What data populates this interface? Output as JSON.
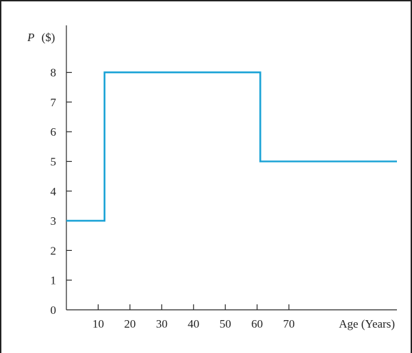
{
  "chart_data": {
    "type": "line",
    "step": true,
    "ylabel_var": "P",
    "ylabel_unit": "($)",
    "xlabel": "Age (Years)",
    "x_ticks": [
      10,
      20,
      30,
      40,
      50,
      60,
      70
    ],
    "y_ticks": [
      0,
      1,
      2,
      3,
      4,
      5,
      6,
      7,
      8
    ],
    "xlim": [
      0,
      104
    ],
    "ylim": [
      0,
      9
    ],
    "series": [
      {
        "color": "#1BA3D6",
        "points": [
          {
            "x": 0,
            "y": 3
          },
          {
            "x": 12,
            "y": 3
          },
          {
            "x": 12,
            "y": 8
          },
          {
            "x": 61,
            "y": 8
          },
          {
            "x": 61,
            "y": 5
          },
          {
            "x": 104,
            "y": 5
          }
        ]
      }
    ]
  }
}
